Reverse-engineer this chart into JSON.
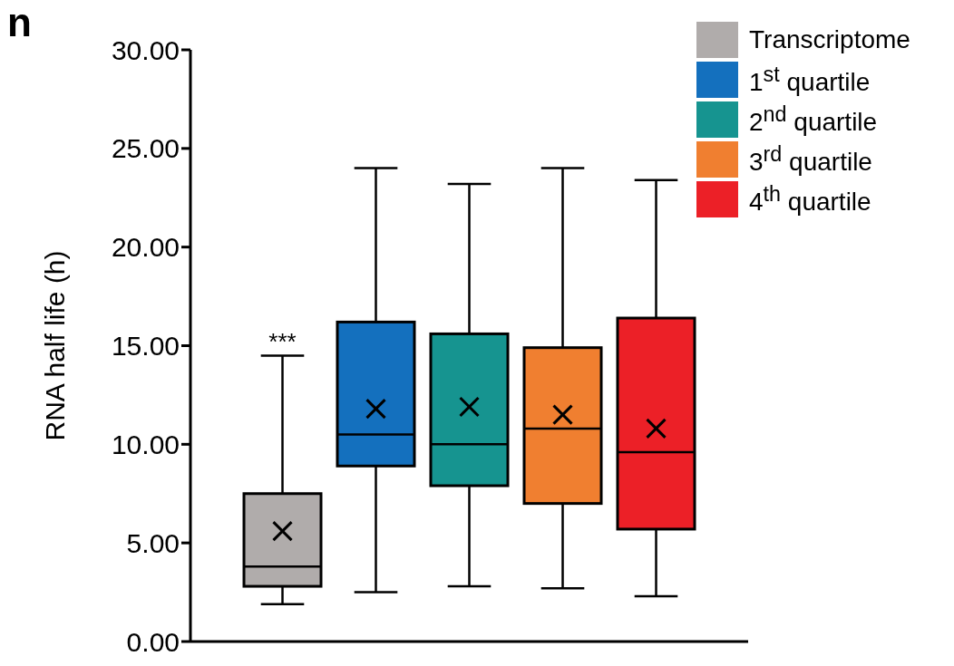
{
  "chart_data": {
    "type": "box",
    "ylabel": "RNA half life (h)",
    "categories": [
      null
    ],
    "series": [
      {
        "name": "Transcriptome",
        "color": "#b0acab",
        "boxes": [
          {
            "low": 1.9,
            "q1": 2.8,
            "median": 3.8,
            "q3": 7.5,
            "high": 14.5,
            "mean": 5.6
          }
        ]
      },
      {
        "name": "1$^{st}$ quartile",
        "color": "#1470be",
        "boxes": [
          {
            "low": 2.5,
            "q1": 8.9,
            "median": 10.5,
            "q3": 16.2,
            "high": 24.0,
            "mean": 11.8
          }
        ]
      },
      {
        "name": "2$^{nd}$ quartile",
        "color": "#169490",
        "boxes": [
          {
            "low": 2.8,
            "q1": 7.9,
            "median": 10.0,
            "q3": 15.6,
            "high": 23.2,
            "mean": 11.9
          }
        ]
      },
      {
        "name": "3$^{rd}$ quartile",
        "color": "#f07f30",
        "boxes": [
          {
            "low": 2.7,
            "q1": 7.0,
            "median": 10.8,
            "q3": 14.9,
            "high": 24.0,
            "mean": 11.5
          }
        ]
      },
      {
        "name": "4$^{th}$ quartile",
        "color": "#ec2027",
        "boxes": [
          {
            "low": 2.3,
            "q1": 5.7,
            "median": 9.6,
            "q3": 16.4,
            "high": 23.4,
            "mean": 10.8
          }
        ]
      }
    ],
    "ylim": [
      0,
      30
    ],
    "yticks": [
      {
        "value": 0,
        "label": "0.00"
      },
      {
        "value": 5,
        "label": "5.00"
      },
      {
        "value": 10,
        "label": "10.00"
      },
      {
        "value": 15,
        "label": "15.00"
      },
      {
        "value": 20,
        "label": "20.00"
      },
      {
        "value": 25,
        "label": "25.00"
      },
      {
        "value": 30,
        "label": "30.00"
      }
    ],
    "tick_labels": "y",
    "legend": "top right",
    "annotations": [
      "n",
      {
        "text": "***",
        "y": 14.5
      }
    ]
  }
}
